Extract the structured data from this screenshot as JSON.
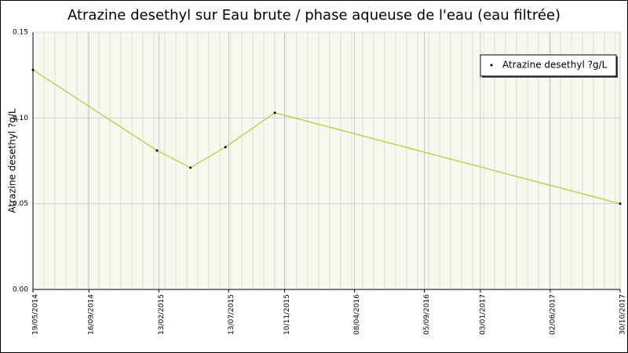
{
  "chart_data": {
    "type": "line",
    "title": "Atrazine desethyl sur Eau brute / phase aqueuse de l'eau (eau filtrée)",
    "y_label": "Atrazine desethyl ?g/L",
    "x": [
      "2014-05-19",
      "2015-02-09",
      "2015-04-22",
      "2015-07-06",
      "2015-10-20",
      "2017-10-30"
    ],
    "series": [
      {
        "name": "Atrazine desethyl ?g/L",
        "color": "#a8d030",
        "values": [
          0.128,
          0.081,
          0.071,
          0.083,
          0.103,
          0.05
        ]
      }
    ],
    "xlim": [
      "2014-05-19",
      "2017-10-30"
    ],
    "xticks": [
      {
        "value": "2014-05-19",
        "label": "19/05/2014"
      },
      {
        "value": "2014-09-16",
        "label": "16/09/2014"
      },
      {
        "value": "2015-02-13",
        "label": "13/02/2015"
      },
      {
        "value": "2015-07-13",
        "label": "13/07/2015"
      },
      {
        "value": "2015-11-10",
        "label": "10/11/2015"
      },
      {
        "value": "2016-04-08",
        "label": "08/04/2016"
      },
      {
        "value": "2016-09-05",
        "label": "05/09/2016"
      },
      {
        "value": "2017-01-03",
        "label": "03/01/2017"
      },
      {
        "value": "2017-06-02",
        "label": "02/06/2017"
      },
      {
        "value": "2017-10-30",
        "label": "30/10/2017"
      }
    ],
    "ylim": [
      0,
      0.15
    ],
    "yticks": [
      {
        "value": 0,
        "label": "0.00"
      },
      {
        "value": 0.05,
        "label": "0.05"
      },
      {
        "value": 0.1,
        "label": "0.10"
      },
      {
        "value": 0.15,
        "label": "0.15"
      }
    ],
    "grid": true,
    "legend": "top-right"
  }
}
